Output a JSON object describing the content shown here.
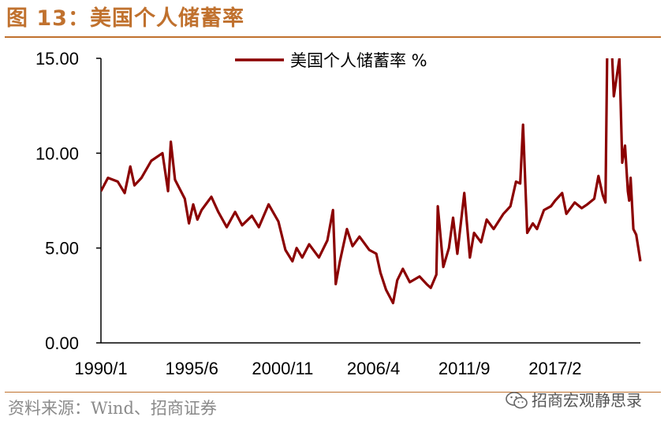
{
  "header": {
    "figure_title": "图 13：美国个人储蓄率"
  },
  "footer": {
    "source": "资料来源：Wind、招商证券",
    "watermark": "招商宏观静思录"
  },
  "colors": {
    "accent": "#c0712e",
    "series": "#8b0000",
    "axis": "#000000"
  },
  "icons": {
    "watermark_icon": "wechat-icon"
  },
  "chart_data": {
    "type": "line",
    "title": "",
    "xlabel": "",
    "ylabel": "",
    "ylim": [
      0,
      15
    ],
    "yticks": [
      0,
      5,
      10,
      15
    ],
    "ytick_labels": [
      "0.00",
      "5.00",
      "10.00",
      "15.00"
    ],
    "x_start": "1990/1",
    "x_end": "2022/3",
    "xtick_labels": [
      "1990/1",
      "1995/6",
      "2000/11",
      "2006/4",
      "2011/9",
      "2017/2"
    ],
    "legend": {
      "label": "美国个人储蓄率 %",
      "position": "top-center"
    },
    "grid": false,
    "series": [
      {
        "name": "美国个人储蓄率 %",
        "points": [
          [
            "1990/1",
            8.0
          ],
          [
            "1990/6",
            8.7
          ],
          [
            "1991/1",
            8.5
          ],
          [
            "1991/6",
            7.9
          ],
          [
            "1991/10",
            9.3
          ],
          [
            "1992/1",
            8.3
          ],
          [
            "1992/6",
            8.7
          ],
          [
            "1993/1",
            9.6
          ],
          [
            "1993/9",
            10.0
          ],
          [
            "1994/1",
            8.0
          ],
          [
            "1994/3",
            10.6
          ],
          [
            "1994/6",
            8.6
          ],
          [
            "1995/1",
            7.6
          ],
          [
            "1995/4",
            6.3
          ],
          [
            "1995/7",
            7.3
          ],
          [
            "1995/10",
            6.5
          ],
          [
            "1996/1",
            7.0
          ],
          [
            "1996/8",
            7.7
          ],
          [
            "1997/1",
            6.9
          ],
          [
            "1997/7",
            6.1
          ],
          [
            "1998/1",
            6.9
          ],
          [
            "1998/6",
            6.2
          ],
          [
            "1999/1",
            6.7
          ],
          [
            "1999/6",
            6.1
          ],
          [
            "2000/1",
            7.3
          ],
          [
            "2000/8",
            6.4
          ],
          [
            "2001/1",
            4.9
          ],
          [
            "2001/6",
            4.3
          ],
          [
            "2001/9",
            5.0
          ],
          [
            "2002/1",
            4.5
          ],
          [
            "2002/6",
            5.2
          ],
          [
            "2003/1",
            4.5
          ],
          [
            "2003/7",
            5.4
          ],
          [
            "2003/11",
            7.0
          ],
          [
            "2004/1",
            3.1
          ],
          [
            "2004/4",
            4.3
          ],
          [
            "2004/9",
            6.0
          ],
          [
            "2005/1",
            5.1
          ],
          [
            "2005/6",
            5.6
          ],
          [
            "2006/1",
            4.9
          ],
          [
            "2006/6",
            4.7
          ],
          [
            "2006/9",
            3.7
          ],
          [
            "2007/1",
            2.8
          ],
          [
            "2007/6",
            2.1
          ],
          [
            "2007/9",
            3.3
          ],
          [
            "2008/1",
            3.9
          ],
          [
            "2008/6",
            3.2
          ],
          [
            "2009/1",
            3.5
          ],
          [
            "2009/6",
            3.1
          ],
          [
            "2009/9",
            2.9
          ],
          [
            "2010/1",
            3.6
          ],
          [
            "2010/2",
            7.2
          ],
          [
            "2010/6",
            4.0
          ],
          [
            "2010/10",
            5.0
          ],
          [
            "2011/1",
            6.6
          ],
          [
            "2011/4",
            4.7
          ],
          [
            "2011/9",
            7.9
          ],
          [
            "2012/1",
            4.5
          ],
          [
            "2012/4",
            5.8
          ],
          [
            "2012/9",
            5.3
          ],
          [
            "2013/1",
            6.5
          ],
          [
            "2013/6",
            6.0
          ],
          [
            "2014/1",
            6.8
          ],
          [
            "2014/6",
            7.2
          ],
          [
            "2014/10",
            8.5
          ],
          [
            "2015/1",
            8.4
          ],
          [
            "2015/3",
            11.5
          ],
          [
            "2015/6",
            5.8
          ],
          [
            "2015/10",
            6.3
          ],
          [
            "2016/1",
            6.0
          ],
          [
            "2016/6",
            7.0
          ],
          [
            "2016/11",
            7.2
          ],
          [
            "2017/2",
            7.5
          ],
          [
            "2017/7",
            7.9
          ],
          [
            "2017/10",
            6.8
          ],
          [
            "2018/4",
            7.4
          ],
          [
            "2018/9",
            7.1
          ],
          [
            "2019/1",
            7.3
          ],
          [
            "2019/6",
            7.6
          ],
          [
            "2019/9",
            8.8
          ],
          [
            "2019/12",
            7.8
          ],
          [
            "2020/2",
            7.4
          ],
          [
            "2020/4",
            20.0
          ],
          [
            "2020/8",
            13.0
          ],
          [
            "2020/12",
            15.0
          ],
          [
            "2021/2",
            9.5
          ],
          [
            "2021/4",
            10.4
          ],
          [
            "2021/6",
            8.0
          ],
          [
            "2021/7",
            7.5
          ],
          [
            "2021/8",
            8.7
          ],
          [
            "2021/10",
            6.0
          ],
          [
            "2021/12",
            5.7
          ],
          [
            "2022/3",
            4.3
          ]
        ]
      }
    ]
  }
}
